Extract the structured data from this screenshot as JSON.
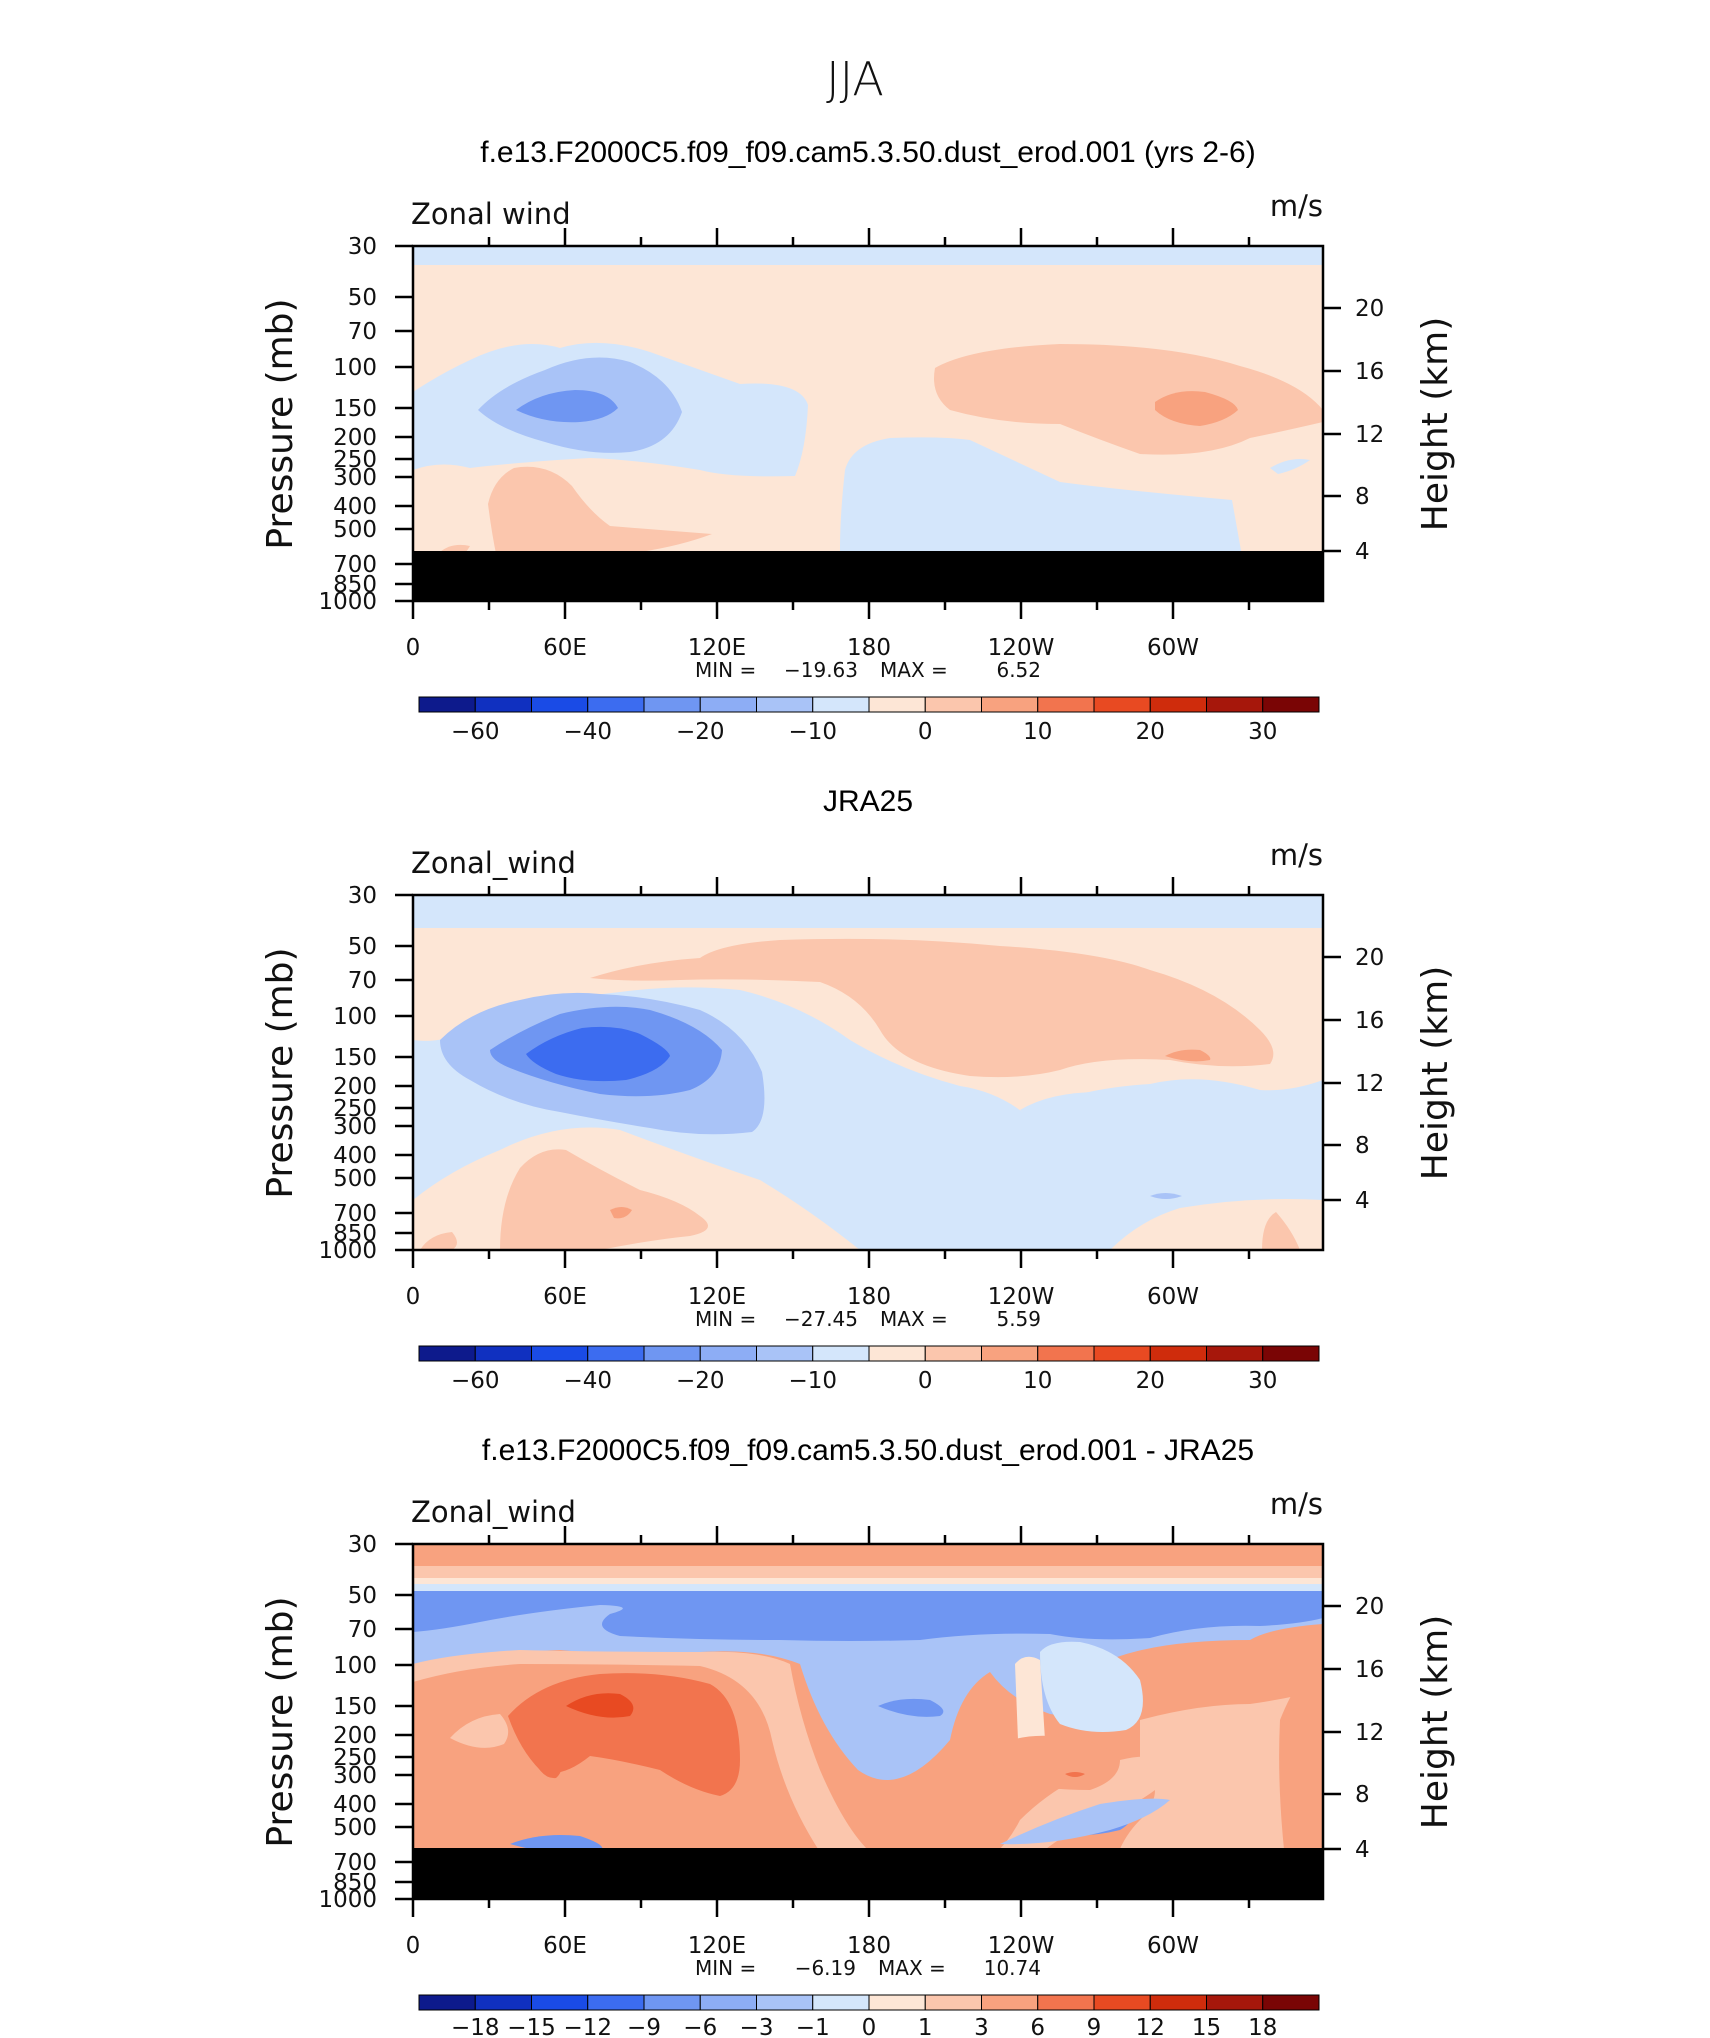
{
  "figure_title": "JJA",
  "colors": {
    "deep_neg": "#0d1a8c",
    "neg5": "#1030c0",
    "neg4": "#1a4be6",
    "neg3": "#3c6cf0",
    "neg2": "#6f96f2",
    "neg1": "#a9c3f7",
    "neg0": "#d4e6fb",
    "pos0": "#fde6d6",
    "pos1": "#fbc6ad",
    "pos2": "#f8a27f",
    "pos3": "#f2744e",
    "pos4": "#e84a22",
    "pos5": "#cf2c0c",
    "pos6": "#a6170b",
    "deep_pos": "#7a0505",
    "missing": "#000000"
  },
  "chart_data": [
    {
      "type": "heatmap",
      "id": "model",
      "title": "f.e13.F2000C5.f09_f09.cam5.3.50.dust_erod.001 (yrs 2-6)",
      "variable_label": "Zonal wind",
      "units_label": "m/s",
      "ylabel": "Pressure (mb)",
      "ylabel_right": "Height (km)",
      "x_ticks": [
        "0",
        "60E",
        "120E",
        "180",
        "120W",
        "60W"
      ],
      "y_ticks": [
        "30",
        "50",
        "70",
        "100",
        "150",
        "200",
        "250",
        "300",
        "400",
        "500",
        "700",
        "850",
        "1000"
      ],
      "right_ticks": [
        "20",
        "16",
        "12",
        "8",
        "4"
      ],
      "stat_min_label": "MIN =",
      "stat_min": "−19.63",
      "stat_max_label": "MAX =",
      "stat_max": "6.52",
      "colorbar_labels": [
        "−60",
        "−40",
        "−20",
        "−10",
        "0",
        "10",
        "20",
        "30"
      ],
      "contour_levels": [
        -70,
        -60,
        -50,
        -40,
        -30,
        -20,
        -15,
        -10,
        -5,
        0,
        5,
        10,
        15,
        20,
        25,
        30
      ],
      "masked_below_mb": 600,
      "features": [
        {
          "kind": "band",
          "p_range_mb": [
            30,
            40
          ],
          "value": -3
        },
        {
          "kind": "blob",
          "lon": 70,
          "p_mb": 140,
          "value": -12
        },
        {
          "kind": "blob",
          "lon": 70,
          "p_mb": 140,
          "value": -19.63
        },
        {
          "kind": "blob",
          "lon": 200,
          "p_mb": 400,
          "value": -3
        },
        {
          "kind": "blob",
          "lon": 270,
          "p_mb": 120,
          "value": 5
        },
        {
          "kind": "blob",
          "lon": 300,
          "p_mb": 140,
          "value": 6.52
        },
        {
          "kind": "blob",
          "lon": 40,
          "p_mb": 450,
          "value": 3
        }
      ]
    },
    {
      "type": "heatmap",
      "id": "obs",
      "title": "JRA25",
      "variable_label": "Zonal_wind",
      "units_label": "m/s",
      "ylabel": "Pressure (mb)",
      "ylabel_right": "Height (km)",
      "x_ticks": [
        "0",
        "60E",
        "120E",
        "180",
        "120W",
        "60W"
      ],
      "y_ticks": [
        "30",
        "50",
        "70",
        "100",
        "150",
        "200",
        "250",
        "300",
        "400",
        "500",
        "700",
        "850",
        "1000"
      ],
      "right_ticks": [
        "20",
        "16",
        "12",
        "8",
        "4"
      ],
      "stat_min_label": "MIN =",
      "stat_min": "−27.45",
      "stat_max_label": "MAX =",
      "stat_max": "5.59",
      "colorbar_labels": [
        "−60",
        "−40",
        "−20",
        "−10",
        "0",
        "10",
        "20",
        "30"
      ],
      "contour_levels": [
        -70,
        -60,
        -50,
        -40,
        -30,
        -20,
        -15,
        -10,
        -5,
        0,
        5,
        10,
        15,
        20,
        25,
        30
      ],
      "masked_below_mb": null,
      "features": [
        {
          "kind": "band",
          "p_range_mb": [
            30,
            40
          ],
          "value": -3
        },
        {
          "kind": "blob",
          "lon": 70,
          "p_mb": 150,
          "value": -27.45
        },
        {
          "kind": "blob",
          "lon": 240,
          "p_mb": 120,
          "value": 5.59
        },
        {
          "kind": "blob",
          "lon": 60,
          "p_mb": 700,
          "value": 3
        }
      ]
    },
    {
      "type": "heatmap",
      "id": "diff",
      "title": "f.e13.F2000C5.f09_f09.cam5.3.50.dust_erod.001 - JRA25",
      "variable_label": "Zonal_wind",
      "units_label": "m/s",
      "ylabel": "Pressure (mb)",
      "ylabel_right": "Height (km)",
      "x_ticks": [
        "0",
        "60E",
        "120E",
        "180",
        "120W",
        "60W"
      ],
      "y_ticks": [
        "30",
        "50",
        "70",
        "100",
        "150",
        "200",
        "250",
        "300",
        "400",
        "500",
        "700",
        "850",
        "1000"
      ],
      "right_ticks": [
        "20",
        "16",
        "12",
        "8",
        "4"
      ],
      "stat_min_label": "MIN =",
      "stat_min": "−6.19",
      "stat_max_label": "MAX =",
      "stat_max": "10.74",
      "colorbar_labels": [
        "−18",
        "−15",
        "−12",
        "−9",
        "−6",
        "−3",
        "−1",
        "0",
        "1",
        "3",
        "6",
        "9",
        "12",
        "15",
        "18"
      ],
      "contour_levels": [
        -18,
        -15,
        -12,
        -9,
        -6,
        -3,
        -1,
        0,
        1,
        3,
        6,
        9,
        12,
        15,
        18
      ],
      "masked_below_mb": 600,
      "features": [
        {
          "kind": "band",
          "p_range_mb": [
            30,
            45
          ],
          "value": 3
        },
        {
          "kind": "band",
          "p_range_mb": [
            50,
            80
          ],
          "value": -4
        },
        {
          "kind": "blob",
          "lon": 80,
          "p_mb": 150,
          "value": 10.74
        },
        {
          "kind": "blob",
          "lon": 195,
          "p_mb": 150,
          "value": -6.19
        },
        {
          "kind": "blob",
          "lon": 260,
          "p_mb": 280,
          "value": 6
        }
      ]
    }
  ]
}
